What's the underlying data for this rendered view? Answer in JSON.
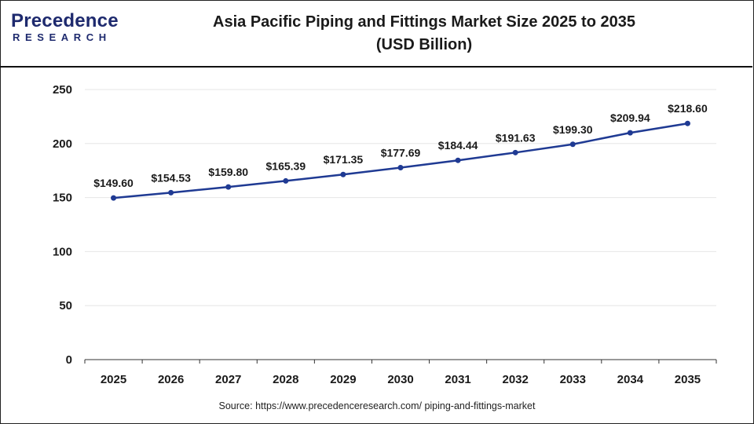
{
  "header": {
    "logo_brand": "Precedence",
    "logo_sub": "RESEARCH",
    "title_line1": "Asia Pacific Piping and Fittings Market Size 2025 to 2035",
    "title_line2": "(USD Billion)"
  },
  "footer": {
    "source": "Source: https://www.precedenceresearch.com/ piping-and-fittings-market"
  },
  "colors": {
    "line": "#1f3a93",
    "marker": "#1f3a93",
    "grid": "#e6e6e6",
    "axis": "#333333"
  },
  "chart_data": {
    "type": "line",
    "categories": [
      "2025",
      "2026",
      "2027",
      "2028",
      "2029",
      "2030",
      "2031",
      "2032",
      "2033",
      "2034",
      "2035"
    ],
    "series": [
      {
        "values": [
          149.6,
          154.53,
          159.8,
          165.39,
          171.35,
          177.69,
          184.44,
          191.63,
          199.3,
          209.94,
          218.6
        ],
        "data_labels": [
          "$149.60",
          "$154.53",
          "$159.80",
          "$165.39",
          "$171.35",
          "$177.69",
          "$184.44",
          "$191.63",
          "$199.30",
          "$209.94",
          "$218.60"
        ]
      }
    ],
    "y_ticks": [
      "0",
      "50",
      "100",
      "150",
      "200",
      "250"
    ],
    "ylim": [
      0,
      250
    ],
    "grid": true,
    "legend": "none"
  }
}
